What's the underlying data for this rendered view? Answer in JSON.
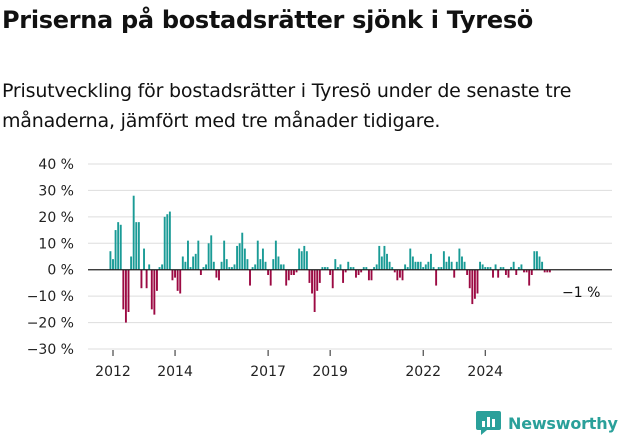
{
  "title": "Priserna på bostadsrätter sjönk i Tyresö",
  "subtitle": "Prisutveckling för bostadsrätter i Tyresö under de senaste tre månaderna, jämfört med tre månader tidigare.",
  "brand": {
    "name": "Newsworthy",
    "logo_icon": "newsworthy-chart-bubble-icon"
  },
  "colors": {
    "positive": "#1a9b96",
    "negative": "#9c0a43",
    "axis": "#222222",
    "grid": "#dddddd",
    "brand": "#2aa09a"
  },
  "chart_data": {
    "type": "bar",
    "x_unit": "month",
    "y_unit": "%",
    "ylim": [
      -30,
      40
    ],
    "y_ticks": [
      40,
      30,
      20,
      10,
      0,
      -10,
      -20,
      -30
    ],
    "y_tick_labels": [
      "40 %",
      "30 %",
      "20 %",
      "10 %",
      "0 %",
      "−10 %",
      "−20 %",
      "−30 %"
    ],
    "x_ticks": [
      "2012",
      "2014",
      "2017",
      "2019",
      "2022",
      "2024"
    ],
    "grid": "horizontal",
    "legend": "none",
    "annotation": {
      "label": "−1 %",
      "target": "last"
    },
    "series": [
      {
        "start": "2011-12",
        "values": [
          7,
          4,
          15,
          18,
          17,
          -15,
          -20,
          -16,
          5,
          28,
          18,
          18,
          -7,
          8,
          -7,
          2,
          -15,
          -17,
          -8,
          1,
          2,
          20,
          21,
          22,
          -4,
          -3,
          -8,
          -9,
          5,
          3,
          11,
          1,
          5,
          6,
          11,
          -2,
          1,
          2,
          10,
          13,
          3,
          -3,
          -4,
          3,
          11,
          4,
          1,
          1,
          2,
          9,
          10,
          14,
          8,
          4,
          -6,
          1,
          2,
          11,
          4,
          8,
          3,
          -2,
          -6,
          4,
          11,
          5,
          2,
          2,
          -6,
          -4,
          -2,
          -2,
          -1,
          8,
          7,
          9,
          7,
          -5,
          -9,
          -16,
          -8,
          -5,
          1,
          1,
          1,
          -2,
          -7,
          4,
          1,
          2,
          -5,
          -1,
          3,
          1,
          1,
          -3,
          -2,
          -1,
          1,
          1,
          -4,
          -4,
          1,
          2,
          9,
          5,
          9,
          6,
          3,
          1,
          -1,
          -4,
          -3,
          -4,
          2,
          1,
          8,
          5,
          3,
          3,
          3,
          1,
          2,
          3,
          6,
          1,
          -6,
          1,
          1,
          7,
          3,
          5,
          3,
          -3,
          3,
          8,
          5,
          3,
          -2,
          -7,
          -13,
          -11,
          -9,
          3,
          2,
          1,
          1,
          1,
          -3,
          2,
          -3,
          1,
          1,
          -2,
          -3,
          1,
          3,
          -2,
          1,
          2,
          -1,
          -1,
          -6,
          -2,
          7,
          7,
          5,
          3,
          -1,
          -1,
          -1
        ]
      }
    ]
  }
}
